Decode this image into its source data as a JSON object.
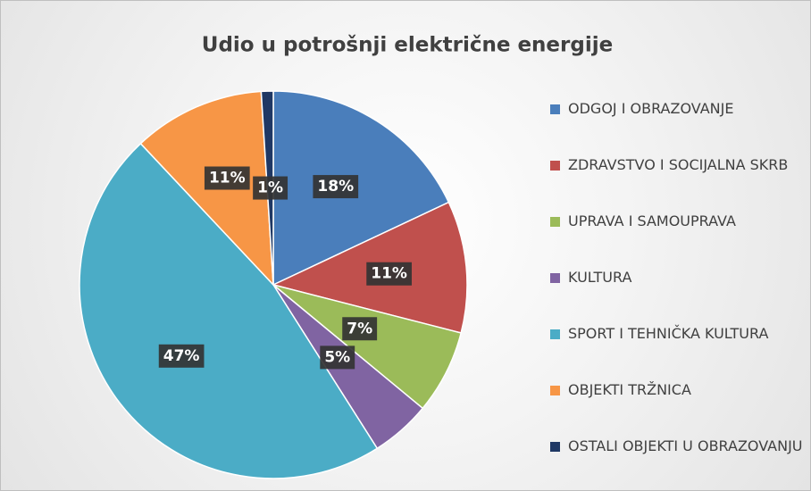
{
  "chart_data": {
    "type": "pie",
    "title": "Udio u potrošnji električne energije",
    "categories": [
      "ODGOJ I OBRAZOVANJE",
      "ZDRAVSTVO I SOCIJALNA SKRB",
      "UPRAVA I SAMOUPRAVA",
      "KULTURA",
      "SPORT I TEHNIČKA KULTURA",
      "OBJEKTI TRŽNICA",
      "OSTALI OBJEKTI U OBRAZOVANJU"
    ],
    "values": [
      18,
      11,
      7,
      5,
      47,
      11,
      1
    ],
    "value_labels": [
      "18%",
      "11%",
      "7%",
      "5%",
      "47%",
      "11%",
      "1%"
    ],
    "colors": [
      "#4a7ebb",
      "#c0504d",
      "#9bbb59",
      "#8064a2",
      "#4bacc6",
      "#f79646",
      "#1f3864"
    ],
    "legend": "right"
  }
}
